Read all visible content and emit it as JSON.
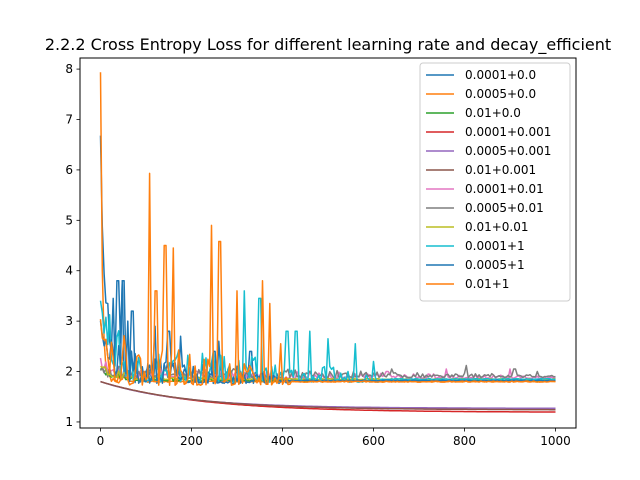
{
  "chart_data": {
    "type": "line",
    "title": "2.2.2 Cross Entropy Loss for different learning rate and decay_efficient",
    "xlabel": "",
    "ylabel": "",
    "xlim": [
      -45,
      1045
    ],
    "ylim": [
      0.88,
      8.22
    ],
    "xticks": [
      0,
      200,
      400,
      600,
      800,
      1000
    ],
    "yticks": [
      1,
      2,
      3,
      4,
      5,
      6,
      7,
      8
    ],
    "legend_position": "top-right",
    "grid": false,
    "series": [
      {
        "name": "0.0001+0.0",
        "color": "#1f77b4",
        "start": 6.05,
        "plateau": 1.82,
        "decay": 12,
        "noise": 0.7,
        "spikes": [
          [
            28,
            3.45
          ],
          [
            38,
            3.8
          ],
          [
            47,
            3.8
          ],
          [
            70,
            3.2
          ],
          [
            120,
            2.9
          ],
          [
            175,
            2.7
          ],
          [
            260,
            2.6
          ],
          [
            330,
            2.4
          ]
        ],
        "noiseEnd": 420,
        "seed": 11
      },
      {
        "name": "0.0005+0.0",
        "color": "#ff7f0e",
        "start": 7.82,
        "plateau": 1.8,
        "decay": 4,
        "noise": 0.2,
        "spikes": [],
        "noiseEnd": 120,
        "seed": 12
      },
      {
        "name": "0.01+0.0",
        "color": "#2ca02c",
        "start": 2.0,
        "plateau": 1.82,
        "decay": 30,
        "noise": 0.12,
        "spikes": [],
        "noiseEnd": 300,
        "seed": 13
      },
      {
        "name": "0.0001+0.001",
        "color": "#d62728",
        "start": 1.8,
        "plateau": 1.19,
        "decay": 220,
        "noise": 0,
        "spikes": [],
        "noiseEnd": 0,
        "seed": 14
      },
      {
        "name": "0.0005+0.001",
        "color": "#9467bd",
        "start": 1.8,
        "plateau": 1.27,
        "decay": 180,
        "noise": 0,
        "spikes": [],
        "noiseEnd": 0,
        "seed": 15
      },
      {
        "name": "0.01+0.001",
        "color": "#8c564b",
        "start": 1.8,
        "plateau": 1.24,
        "decay": 200,
        "noise": 0,
        "spikes": [],
        "noiseEnd": 0,
        "seed": 16
      },
      {
        "name": "0.0001+0.01",
        "color": "#e377c2",
        "start": 2.1,
        "plateau": 1.88,
        "decay": 30,
        "noise": 0.18,
        "spikes": [
          [
            630,
            2.0
          ],
          [
            760,
            2.05
          ],
          [
            900,
            2.05
          ]
        ],
        "noiseEnd": 1000,
        "seed": 17
      },
      {
        "name": "0.0005+0.01",
        "color": "#7f7f7f",
        "start": 1.9,
        "plateau": 1.9,
        "decay": 30,
        "noise": 0.2,
        "spikes": [
          [
            20,
            1.7
          ],
          [
            640,
            2.05
          ],
          [
            805,
            2.12
          ],
          [
            910,
            2.05
          ],
          [
            960,
            2.0
          ]
        ],
        "noiseEnd": 1000,
        "seed": 18
      },
      {
        "name": "0.01+0.01",
        "color": "#bcbd22",
        "start": 2.05,
        "plateau": 1.85,
        "decay": 20,
        "noise": 0.15,
        "spikes": [],
        "noiseEnd": 250,
        "seed": 19
      },
      {
        "name": "0.0001+1",
        "color": "#17becf",
        "start": 3.3,
        "plateau": 1.85,
        "decay": 20,
        "noise": 0.75,
        "spikes": [
          [
            315,
            3.6
          ],
          [
            350,
            3.45
          ],
          [
            410,
            2.8
          ],
          [
            430,
            2.8
          ],
          [
            460,
            2.8
          ],
          [
            500,
            2.65
          ],
          [
            560,
            2.55
          ],
          [
            600,
            2.2
          ]
        ],
        "noiseEnd": 620,
        "seed": 20
      },
      {
        "name": "0.0005+1",
        "color": "#1f77b4",
        "start": 3.0,
        "plateau": 1.82,
        "decay": 15,
        "noise": 0.6,
        "spikes": [
          [
            50,
            3.8
          ],
          [
            60,
            3.0
          ],
          [
            150,
            2.8
          ],
          [
            250,
            2.4
          ]
        ],
        "noiseEnd": 400,
        "seed": 21
      },
      {
        "name": "0.01+1",
        "color": "#ff7f0e",
        "start": 3.1,
        "plateau": 1.8,
        "decay": 12,
        "noise": 0.9,
        "spikes": [
          [
            108,
            5.93
          ],
          [
            142,
            4.5
          ],
          [
            160,
            4.45
          ],
          [
            122,
            3.6
          ],
          [
            245,
            4.9
          ],
          [
            262,
            4.58
          ],
          [
            300,
            3.6
          ],
          [
            355,
            3.8
          ],
          [
            372,
            3.35
          ],
          [
            395,
            2.55
          ]
        ],
        "noiseEnd": 420,
        "seed": 22
      }
    ]
  }
}
